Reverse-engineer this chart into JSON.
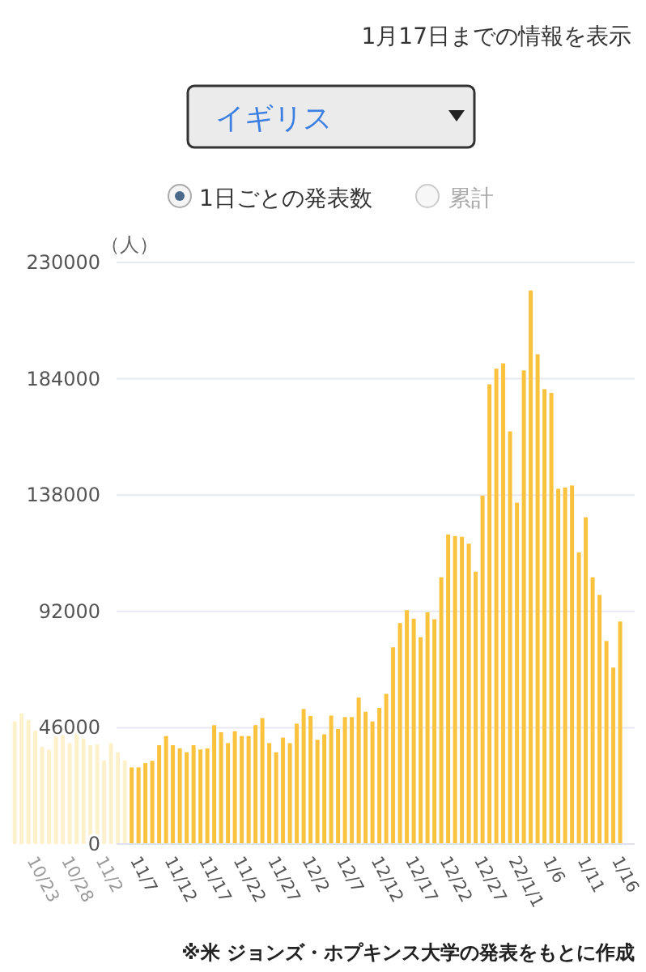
{
  "chart_data": {
    "type": "bar",
    "title": "イギリス",
    "ylabel": "（人）",
    "annotations": [
      "1月17日までの情報を表示",
      "1日ごとの発表数",
      "累計",
      "※米 ジョンズ・ホプキンス大学の発表をもとに作成"
    ],
    "categories": [
      null,
      null,
      "10/23",
      null,
      null,
      null,
      null,
      "10/28",
      null,
      null,
      null,
      null,
      "11/2",
      null,
      null,
      null,
      null,
      "11/7",
      null,
      null,
      null,
      null,
      "11/12",
      null,
      null,
      null,
      null,
      "11/17",
      null,
      null,
      null,
      null,
      "11/22",
      null,
      null,
      null,
      null,
      "11/27",
      null,
      null,
      null,
      null,
      "12/2",
      null,
      null,
      null,
      null,
      "12/7",
      null,
      null,
      null,
      null,
      "12/12",
      null,
      null,
      null,
      null,
      "12/17",
      null,
      null,
      null,
      null,
      "12/22",
      null,
      null,
      null,
      null,
      "12/27",
      null,
      null,
      null,
      null,
      "22/1/1",
      null,
      null,
      null,
      null,
      "1/6",
      null,
      null,
      null,
      null,
      "1/11",
      null,
      null,
      null,
      null,
      "1/16",
      null
    ],
    "values": [
      48500,
      51700,
      49100,
      44900,
      38400,
      37400,
      44200,
      43100,
      39900,
      44200,
      41700,
      39100,
      39500,
      33100,
      39900,
      36300,
      33100,
      30300,
      30300,
      32000,
      32900,
      39100,
      42700,
      39100,
      37800,
      36300,
      39100,
      37400,
      37800,
      47000,
      44200,
      39900,
      44600,
      42700,
      42700,
      47000,
      49800,
      39900,
      36300,
      42100,
      39900,
      47600,
      53400,
      50600,
      41200,
      43400,
      50800,
      45500,
      50200,
      50200,
      57900,
      52300,
      48500,
      53800,
      59400,
      77800,
      87400,
      92500,
      89100,
      81800,
      91600,
      88900,
      105500,
      122400,
      121800,
      121500,
      118800,
      107700,
      137800,
      181800,
      188000,
      190100,
      163200,
      135000,
      187300,
      218900,
      193700,
      179900,
      178400,
      140500,
      141000,
      141800,
      115300,
      129200,
      105500,
      98500,
      80300,
      69800,
      88000
    ],
    "colors": [
      "#fdf1cc",
      "#fdf1cc",
      "#fdf1cc",
      "#fdf1cc",
      "#fdf1cc",
      "#fdf1cc",
      "#fdf1cc",
      "#fdf1cc",
      "#fdf1cc",
      "#fdf1cc",
      "#fdf1cc",
      "#fdf1cc",
      "#fdf1cc",
      "#fdf1cc",
      "#fdf1cc",
      "#fdf1cc",
      "#fdf1cc",
      "#fbc23e",
      "#fbc23e",
      "#fbc23e",
      "#fbc23e",
      "#fbc23e",
      "#fbc23e",
      "#fbc23e",
      "#fbc23e",
      "#fbc23e",
      "#fbc23e",
      "#fbc23e",
      "#fbc23e",
      "#fbc23e",
      "#fbc23e",
      "#fbc23e",
      "#fbc23e",
      "#fbc23e",
      "#fbc23e",
      "#fbc23e",
      "#fbc23e",
      "#fbc23e",
      "#fbc23e",
      "#fbc23e",
      "#fbc23e",
      "#fbc23e",
      "#fbc23e",
      "#fbc23e",
      "#fbc23e",
      "#fbc23e",
      "#fbc23e",
      "#fbc23e",
      "#fbc23e",
      "#fbc23e",
      "#fbc23e",
      "#fbc23e",
      "#fbc23e",
      "#fbc23e",
      "#fbc23e",
      "#fbc23e",
      "#fbc23e",
      "#fbc23e",
      "#fbc23e",
      "#fbc23e",
      "#fbc23e",
      "#fbc23e",
      "#fbc23e",
      "#fbc23e",
      "#fbc23e",
      "#fbc23e",
      "#fbc23e",
      "#fbc23e",
      "#fbc23e",
      "#fbc23e",
      "#fbc23e",
      "#fbc23e",
      "#fbc23e",
      "#fbc23e",
      "#fbc23e",
      "#fbc23e",
      "#fbc23e",
      "#fbc23e",
      "#fbc23e",
      "#fbc23e",
      "#fbc23e",
      "#fbc23e",
      "#fbc23e",
      "#fbc23e",
      "#fbc23e",
      "#fbc23e",
      "#fbc23e",
      "#fbc23e",
      "#fbc23e"
    ],
    "ylim": [
      0,
      230000
    ],
    "yticks": [
      0,
      46000,
      92000,
      138000,
      184000,
      230000
    ],
    "grid": "y"
  }
}
